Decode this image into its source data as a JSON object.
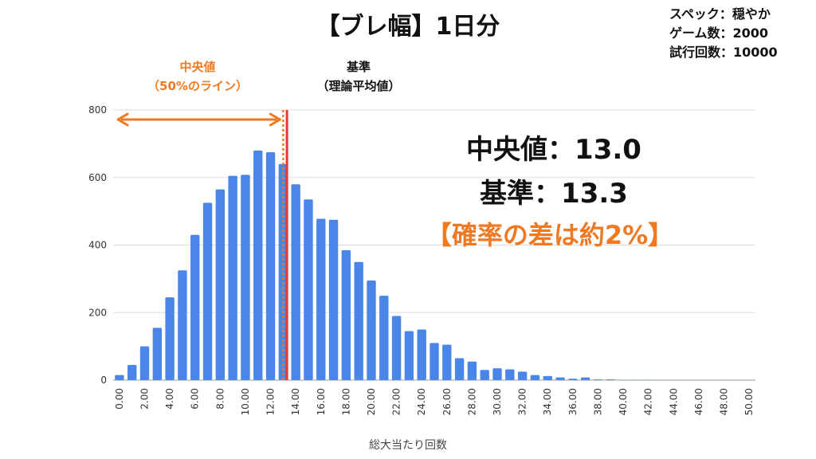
{
  "title": "【ブレ幅】1日分",
  "spec": {
    "line1": "スペック：穏やか",
    "line2": "ゲーム数：2000",
    "line3": "試行回数：10000"
  },
  "annotations": {
    "median_label_1": "中央値",
    "median_label_2": "（50%のライン）",
    "base_label_1": "基準",
    "base_label_2": "（理論平均値）",
    "median_value": "中央値：13.0",
    "base_value": "基準：13.3",
    "diff_note": "【確率の差は約2%】"
  },
  "colors": {
    "bar": "#4a86e8",
    "median": "#f07a23",
    "base": "#e53935",
    "grid": "#dddddd"
  },
  "chart_data": {
    "type": "bar",
    "xlabel": "総大当たり回数",
    "ylabel": "",
    "ylim": [
      0,
      800
    ],
    "yticks": [
      0,
      200,
      400,
      600,
      800
    ],
    "xticks": [
      "0.00",
      "2.00",
      "4.00",
      "6.00",
      "8.00",
      "10.00",
      "12.00",
      "14.00",
      "16.00",
      "18.00",
      "20.00",
      "22.00",
      "24.00",
      "26.00",
      "28.00",
      "30.00",
      "32.00",
      "34.00",
      "36.00",
      "38.00",
      "40.00",
      "42.00",
      "44.00",
      "46.00",
      "48.00",
      "50.00"
    ],
    "categories": [
      0,
      1,
      2,
      3,
      4,
      5,
      6,
      7,
      8,
      9,
      10,
      11,
      12,
      13,
      14,
      15,
      16,
      17,
      18,
      19,
      20,
      21,
      22,
      23,
      24,
      25,
      26,
      27,
      28,
      29,
      30,
      31,
      32,
      33,
      34,
      35,
      36,
      37,
      38,
      39,
      40,
      41,
      42,
      43,
      44,
      45,
      46,
      47,
      48,
      49,
      50
    ],
    "values": [
      15,
      45,
      100,
      155,
      245,
      325,
      430,
      525,
      565,
      605,
      608,
      680,
      675,
      640,
      580,
      535,
      478,
      475,
      385,
      350,
      295,
      250,
      190,
      145,
      150,
      110,
      105,
      65,
      55,
      30,
      35,
      32,
      25,
      15,
      12,
      8,
      4,
      8,
      2,
      2,
      1,
      1,
      1,
      0,
      0,
      0,
      0,
      0,
      0,
      0,
      0
    ],
    "median": 13.0,
    "base": 13.3,
    "grid": true
  }
}
